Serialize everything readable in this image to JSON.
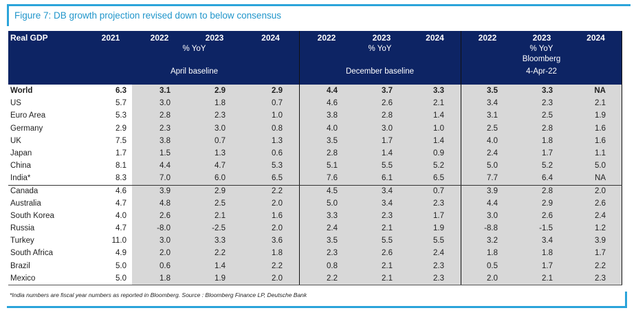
{
  "title": "Figure 7: DB growth projection revised down to below consensus",
  "footnote": "*India numbers are fiscal year numbers as reported in Bloomberg. Source : Bloomberg Finance LP, Deutsche Bank",
  "colors": {
    "header_navy": "#0d2464",
    "accent_blue": "#2ba4da",
    "title_blue": "#2196cb",
    "shaded_gray": "#d8d8d8",
    "divider_black": "#111111"
  },
  "table": {
    "corner_label": "Real GDP",
    "base_year": "2021",
    "groups": [
      {
        "years": [
          "2022",
          "2023",
          "2024"
        ],
        "unit": "% YoY",
        "extra": "",
        "label": "April baseline"
      },
      {
        "years": [
          "2022",
          "2023",
          "2024"
        ],
        "unit": "% YoY",
        "extra": "",
        "label": "December baseline"
      },
      {
        "years": [
          "2022",
          "2023",
          "2024"
        ],
        "unit": "% YoY",
        "extra": "Bloomberg",
        "label": "4-Apr-22"
      }
    ],
    "rows": [
      {
        "country": "World",
        "bold": true,
        "values": [
          "6.3",
          "3.1",
          "2.9",
          "2.9",
          "4.4",
          "3.7",
          "3.3",
          "3.5",
          "3.3",
          "NA"
        ]
      },
      {
        "country": "US",
        "bold": false,
        "values": [
          "5.7",
          "3.0",
          "1.8",
          "0.7",
          "4.6",
          "2.6",
          "2.1",
          "3.4",
          "2.3",
          "2.1"
        ]
      },
      {
        "country": "Euro Area",
        "bold": false,
        "values": [
          "5.3",
          "2.8",
          "2.3",
          "1.0",
          "3.8",
          "2.8",
          "1.4",
          "3.1",
          "2.5",
          "1.9"
        ]
      },
      {
        "country": "Germany",
        "bold": false,
        "values": [
          "2.9",
          "2.3",
          "3.0",
          "0.8",
          "4.0",
          "3.0",
          "1.0",
          "2.5",
          "2.8",
          "1.6"
        ]
      },
      {
        "country": "UK",
        "bold": false,
        "values": [
          "7.5",
          "3.8",
          "0.7",
          "1.3",
          "3.5",
          "1.7",
          "1.4",
          "4.0",
          "1.8",
          "1.6"
        ]
      },
      {
        "country": "Japan",
        "bold": false,
        "values": [
          "1.7",
          "1.5",
          "1.3",
          "0.6",
          "2.8",
          "1.4",
          "0.9",
          "2.4",
          "1.7",
          "1.1"
        ]
      },
      {
        "country": "China",
        "bold": false,
        "values": [
          "8.1",
          "4.4",
          "4.7",
          "5.3",
          "5.1",
          "5.5",
          "5.2",
          "5.0",
          "5.2",
          "5.0"
        ]
      },
      {
        "country": "India*",
        "bold": false,
        "values": [
          "8.3",
          "7.0",
          "6.0",
          "6.5",
          "7.6",
          "6.1",
          "6.5",
          "7.7",
          "6.4",
          "NA"
        ]
      },
      {
        "country": "Canada",
        "bold": false,
        "values": [
          "4.6",
          "3.9",
          "2.9",
          "2.2",
          "4.5",
          "3.4",
          "0.7",
          "3.9",
          "2.8",
          "2.0"
        ]
      },
      {
        "country": "Australia",
        "bold": false,
        "values": [
          "4.7",
          "4.8",
          "2.5",
          "2.0",
          "5.0",
          "3.4",
          "2.3",
          "4.4",
          "2.9",
          "2.6"
        ]
      },
      {
        "country": "South Korea",
        "bold": false,
        "values": [
          "4.0",
          "2.6",
          "2.1",
          "1.6",
          "3.3",
          "2.3",
          "1.7",
          "3.0",
          "2.6",
          "2.4"
        ]
      },
      {
        "country": "Russia",
        "bold": false,
        "values": [
          "4.7",
          "-8.0",
          "-2.5",
          "2.0",
          "2.4",
          "2.1",
          "1.9",
          "-8.8",
          "-1.5",
          "1.2"
        ]
      },
      {
        "country": "Turkey",
        "bold": false,
        "values": [
          "11.0",
          "3.0",
          "3.3",
          "3.6",
          "3.5",
          "5.5",
          "5.5",
          "3.2",
          "3.4",
          "3.9"
        ]
      },
      {
        "country": "South Africa",
        "bold": false,
        "values": [
          "4.9",
          "2.0",
          "2.2",
          "1.8",
          "2.3",
          "2.6",
          "2.4",
          "1.8",
          "1.8",
          "1.7"
        ]
      },
      {
        "country": "Brazil",
        "bold": false,
        "values": [
          "5.0",
          "0.6",
          "1.4",
          "2.2",
          "0.8",
          "2.1",
          "2.3",
          "0.5",
          "1.7",
          "2.2"
        ]
      },
      {
        "country": "Mexico",
        "bold": false,
        "values": [
          "5.0",
          "1.8",
          "1.9",
          "2.0",
          "2.2",
          "2.1",
          "2.3",
          "2.0",
          "2.1",
          "2.3"
        ]
      }
    ],
    "separator_after_row": "India*"
  }
}
